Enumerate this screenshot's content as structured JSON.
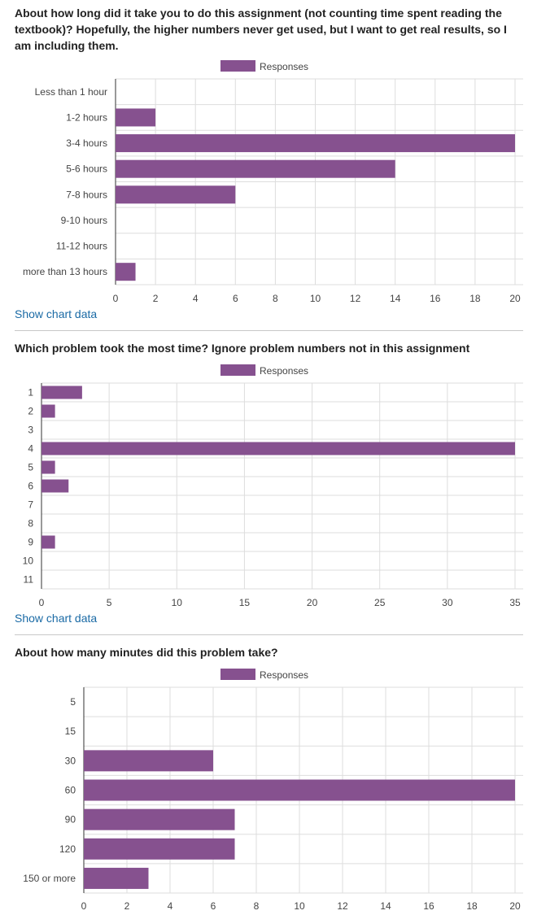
{
  "colors": {
    "bar": "#86518f",
    "grid": "#dddddd",
    "axis_text": "#444444",
    "link": "#1a6aa5"
  },
  "charts": [
    {
      "question": "About how long did it take you to do this assignment (not counting time spent reading the textbook)? Hopefully, the higher numbers never get used, but I want to get real results, so I am including them.",
      "legend": "Responses",
      "show_chart_data": "Show chart data"
    },
    {
      "question": "Which problem took the most time? Ignore problem numbers not in this assignment",
      "legend": "Responses",
      "show_chart_data": "Show chart data"
    },
    {
      "question": "About how many minutes did this problem take?",
      "legend": "Responses",
      "show_chart_data": ""
    }
  ],
  "chart_data": [
    {
      "type": "bar",
      "orientation": "horizontal",
      "categories": [
        "Less than 1 hour",
        "1-2 hours",
        "3-4 hours",
        "5-6 hours",
        "7-8 hours",
        "9-10 hours",
        "11-12 hours",
        "more than 13 hours"
      ],
      "series": [
        {
          "name": "Responses",
          "values": [
            0,
            2,
            20,
            14,
            6,
            0,
            0,
            1
          ]
        }
      ],
      "xlim": [
        0,
        20
      ],
      "xticks": [
        0,
        2,
        4,
        6,
        8,
        10,
        12,
        14,
        16,
        18,
        20
      ],
      "grid": true,
      "legend_position": "top"
    },
    {
      "type": "bar",
      "orientation": "horizontal",
      "categories": [
        "1",
        "2",
        "3",
        "4",
        "5",
        "6",
        "7",
        "8",
        "9",
        "10",
        "11"
      ],
      "series": [
        {
          "name": "Responses",
          "values": [
            3,
            1,
            0,
            35,
            1,
            2,
            0,
            0,
            1,
            0,
            0
          ]
        }
      ],
      "xlim": [
        0,
        35
      ],
      "xticks": [
        0,
        5,
        10,
        15,
        20,
        25,
        30,
        35
      ],
      "grid": true,
      "legend_position": "top"
    },
    {
      "type": "bar",
      "orientation": "horizontal",
      "categories": [
        "5",
        "15",
        "30",
        "60",
        "90",
        "120",
        "150 or more"
      ],
      "series": [
        {
          "name": "Responses",
          "values": [
            0,
            0,
            6,
            20,
            7,
            7,
            3
          ]
        }
      ],
      "xlim": [
        0,
        20
      ],
      "xticks": [
        0,
        2,
        4,
        6,
        8,
        10,
        12,
        14,
        16,
        18,
        20
      ],
      "grid": true,
      "legend_position": "top"
    }
  ]
}
